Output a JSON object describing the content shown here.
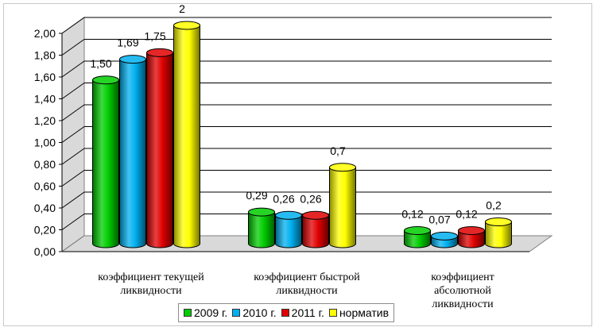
{
  "chart_data": {
    "type": "bar",
    "categories": [
      [
        "коэффициент текущей",
        "ликвидности"
      ],
      [
        "коэффициент быстрой",
        "ликвидности"
      ],
      [
        "коэффициент",
        "абсолютной",
        "ликвидности"
      ]
    ],
    "series": [
      {
        "name": "2009 г.",
        "color": "#00cc00",
        "values": [
          1.5,
          0.29,
          0.12
        ],
        "labels": [
          "1,50",
          "0,29",
          "0,12"
        ]
      },
      {
        "name": "2010 г.",
        "color": "#00b0f0",
        "values": [
          1.69,
          0.26,
          0.07
        ],
        "labels": [
          "1,69",
          "0,26",
          "0,07"
        ]
      },
      {
        "name": "2011 г.",
        "color": "#e00000",
        "values": [
          1.75,
          0.26,
          0.12
        ],
        "labels": [
          "1,75",
          "0,26",
          "0,12"
        ]
      },
      {
        "name": "норматив",
        "color": "#ffff00",
        "values": [
          2,
          0.7,
          0.2
        ],
        "labels": [
          "2",
          "0,7",
          "0,2"
        ]
      }
    ],
    "yticks": [
      "0,00",
      "0,20",
      "0,40",
      "0,60",
      "0,80",
      "1,00",
      "1,20",
      "1,40",
      "1,60",
      "1,80",
      "2,00"
    ],
    "ylim": [
      0,
      2
    ],
    "grid": true,
    "legend_position": "bottom"
  }
}
